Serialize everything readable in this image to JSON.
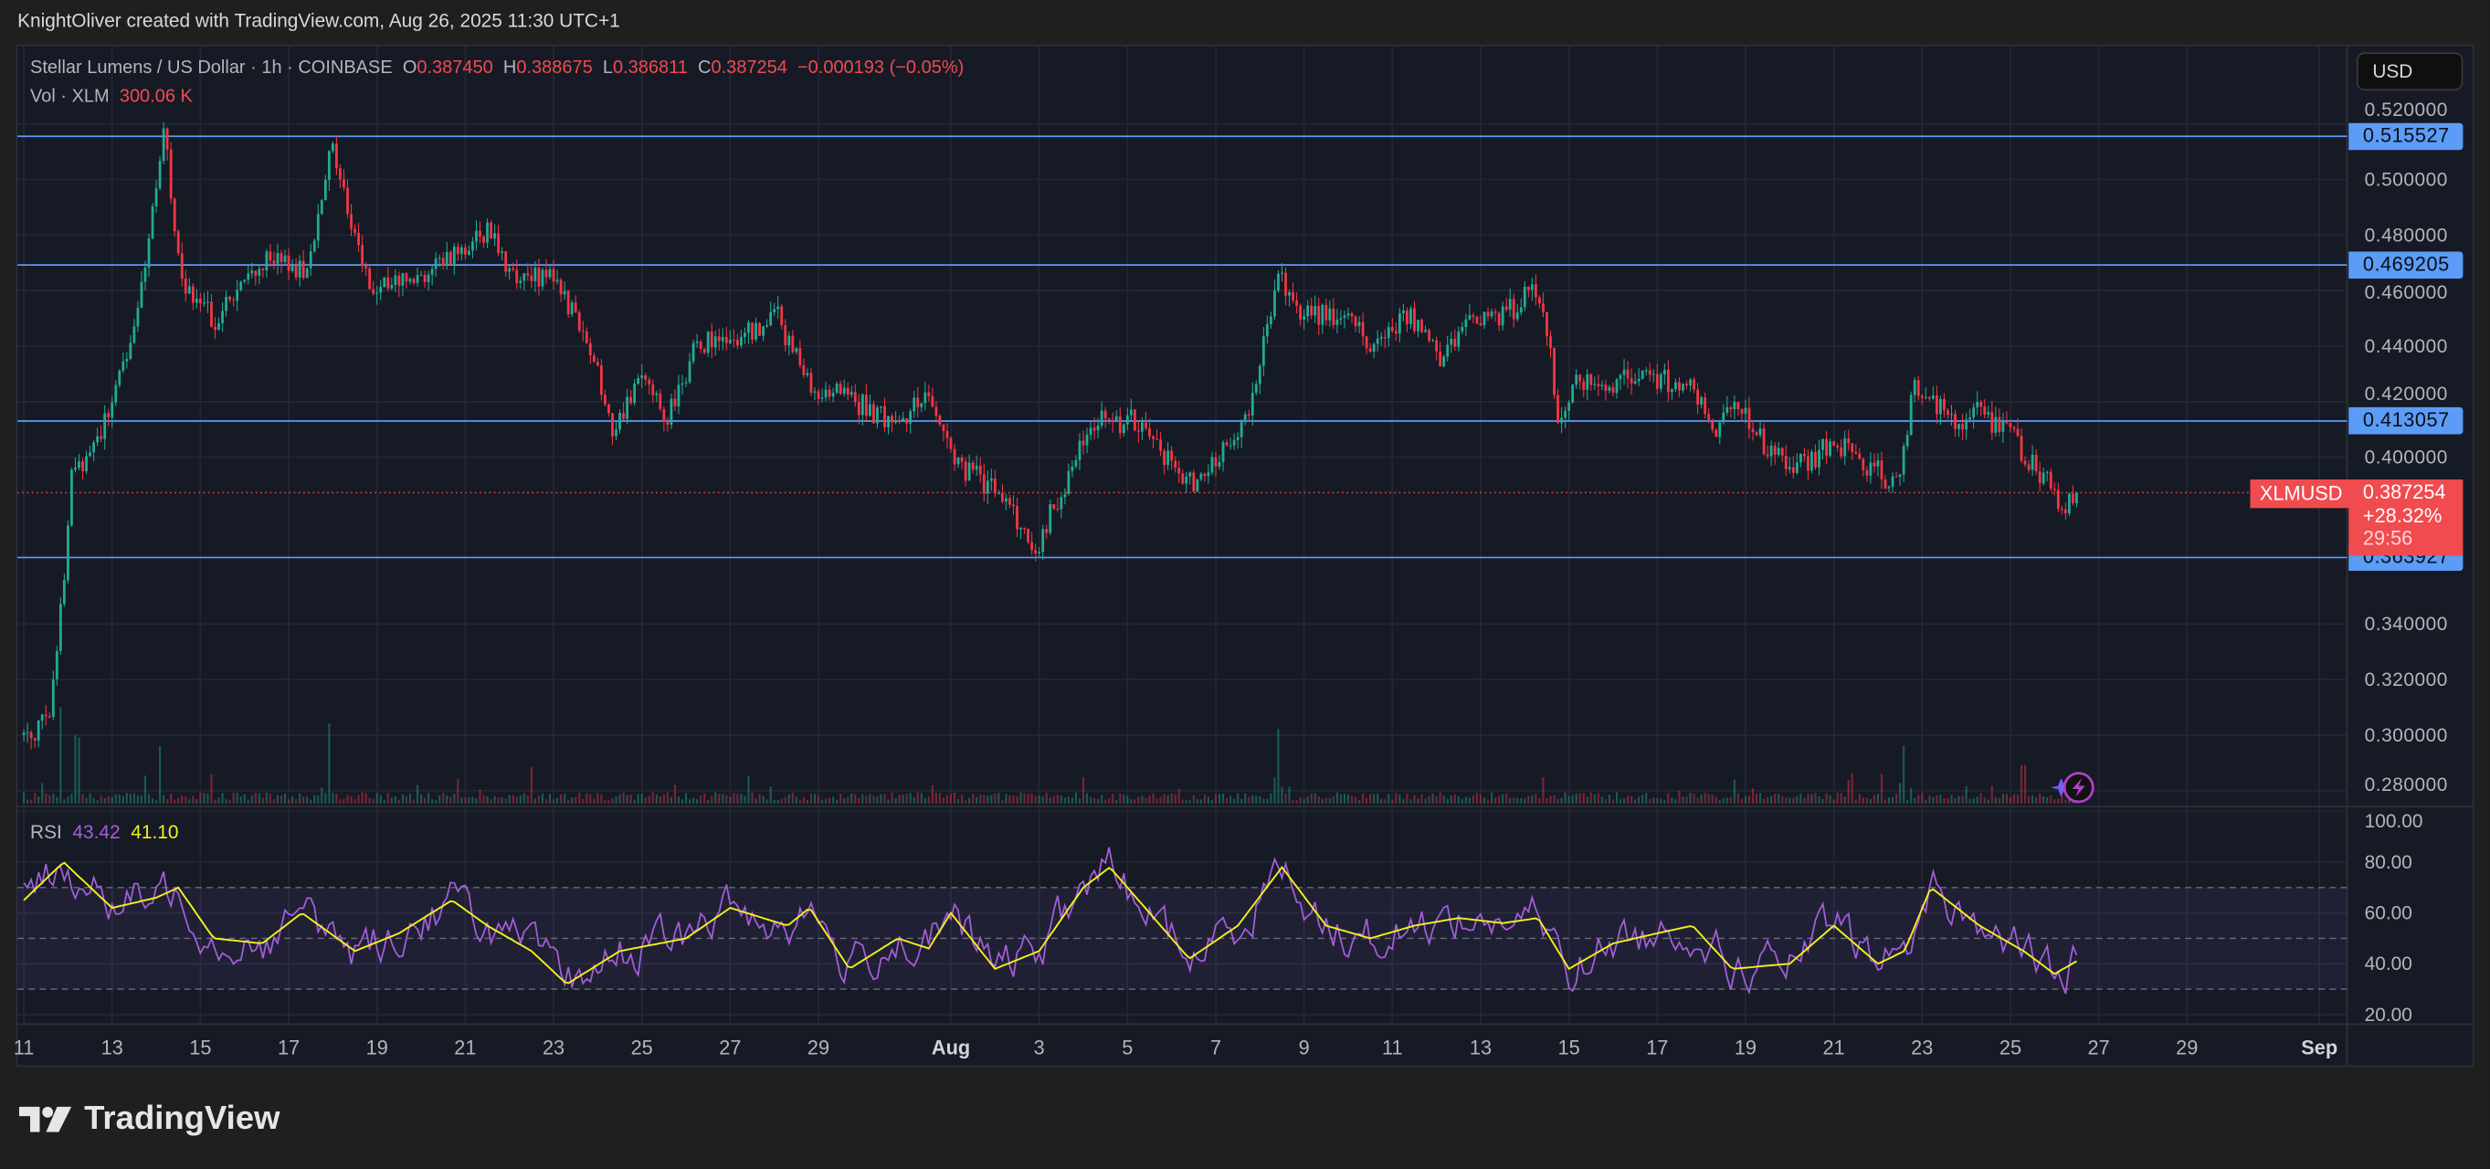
{
  "caption": "KnightOliver created with TradingView.com, Aug 26, 2025 11:30 UTC+1",
  "header": {
    "symbol_title": "Stellar Lumens / US Dollar · 1h · COINBASE",
    "o_label": "O",
    "o_value": "0.387450",
    "h_label": "H",
    "h_value": "0.388675",
    "l_label": "L",
    "l_value": "0.386811",
    "c_label": "C",
    "c_value": "0.387254",
    "change": "−0.000193 (−0.05%)",
    "vol_label": "Vol · XLM",
    "vol_value": "300.06 K"
  },
  "currency_button": "USD",
  "symbol_tag": "XLMUSD",
  "current_price": {
    "price": "0.387254",
    "change_pct": "+28.32%",
    "countdown": "29:56"
  },
  "logo_text": "TradingView",
  "colors": {
    "up": "#22ab94",
    "down": "#f23645",
    "hline": "#5b9cf6",
    "rsi": "#a45fd8",
    "rsi_ma": "#f2f21c"
  },
  "chart_data": [
    {
      "type": "candlestick",
      "title": "Stellar Lumens / US Dollar · 1h · COINBASE",
      "x_unit": "days since Jul 11 2025",
      "ylim": [
        0.27,
        0.525
      ],
      "y_ticks": [
        "0.520000",
        "0.500000",
        "0.480000",
        "0.460000",
        "0.440000",
        "0.420000",
        "0.400000",
        "0.340000",
        "0.320000",
        "0.300000",
        "0.280000"
      ],
      "y_tick_values": [
        0.52,
        0.5,
        0.48,
        0.46,
        0.44,
        0.42,
        0.4,
        0.34,
        0.32,
        0.3,
        0.28
      ],
      "horizontal_lines": [
        {
          "value": 0.515527,
          "label": "0.515527"
        },
        {
          "value": 0.469205,
          "label": "0.469205"
        },
        {
          "value": 0.413057,
          "label": "0.413057"
        },
        {
          "value": 0.363927,
          "label": "0.363927"
        }
      ],
      "last_price": 0.387254,
      "price_path": [
        [
          0,
          0.3
        ],
        [
          0.54,
          0.305
        ],
        [
          0.9,
          0.353
        ],
        [
          1.08,
          0.393
        ],
        [
          1.98,
          0.416
        ],
        [
          2.52,
          0.45
        ],
        [
          3.06,
          0.5
        ],
        [
          3.17,
          0.518
        ],
        [
          3.6,
          0.462
        ],
        [
          4.32,
          0.45
        ],
        [
          5.4,
          0.47
        ],
        [
          6.47,
          0.467
        ],
        [
          6.94,
          0.514
        ],
        [
          7.45,
          0.479
        ],
        [
          7.91,
          0.462
        ],
        [
          8.99,
          0.465
        ],
        [
          9.89,
          0.476
        ],
        [
          10.61,
          0.483
        ],
        [
          11.15,
          0.462
        ],
        [
          12.05,
          0.467
        ],
        [
          12.59,
          0.445
        ],
        [
          13.06,
          0.427
        ],
        [
          13.31,
          0.41
        ],
        [
          14.03,
          0.43
        ],
        [
          14.57,
          0.413
        ],
        [
          15.29,
          0.442
        ],
        [
          16.19,
          0.442
        ],
        [
          17.09,
          0.45
        ],
        [
          17.81,
          0.425
        ],
        [
          18.71,
          0.422
        ],
        [
          19.78,
          0.41
        ],
        [
          20.5,
          0.425
        ],
        [
          21.04,
          0.399
        ],
        [
          22.12,
          0.387
        ],
        [
          22.91,
          0.367
        ],
        [
          23.74,
          0.396
        ],
        [
          24.28,
          0.413
        ],
        [
          25.18,
          0.413
        ],
        [
          25.9,
          0.399
        ],
        [
          26.44,
          0.39
        ],
        [
          27.16,
          0.402
        ],
        [
          27.7,
          0.413
        ],
        [
          28.06,
          0.439
        ],
        [
          28.42,
          0.465
        ],
        [
          28.96,
          0.453
        ],
        [
          30.04,
          0.45
        ],
        [
          30.58,
          0.439
        ],
        [
          31.29,
          0.453
        ],
        [
          32.01,
          0.436
        ],
        [
          32.91,
          0.45
        ],
        [
          33.81,
          0.453
        ],
        [
          34.17,
          0.465
        ],
        [
          34.53,
          0.445
        ],
        [
          34.71,
          0.416
        ],
        [
          35.25,
          0.427
        ],
        [
          36.15,
          0.427
        ],
        [
          37.23,
          0.428
        ],
        [
          37.77,
          0.424
        ],
        [
          38.31,
          0.41
        ],
        [
          38.85,
          0.417
        ],
        [
          39.39,
          0.405
        ],
        [
          40.11,
          0.396
        ],
        [
          41.01,
          0.405
        ],
        [
          41.55,
          0.399
        ],
        [
          42.45,
          0.39
        ],
        [
          42.81,
          0.425
        ],
        [
          43.17,
          0.422
        ],
        [
          43.71,
          0.413
        ],
        [
          44.24,
          0.416
        ],
        [
          44.86,
          0.41
        ],
        [
          45.32,
          0.402
        ],
        [
          45.86,
          0.39
        ],
        [
          46.22,
          0.382
        ],
        [
          46.51,
          0.387
        ]
      ],
      "volume_spikes": [
        [
          0.8,
          1.0
        ],
        [
          1.2,
          0.7
        ],
        [
          3.1,
          0.6
        ],
        [
          6.9,
          0.7
        ],
        [
          11.5,
          0.3
        ],
        [
          28.4,
          0.75
        ],
        [
          42.6,
          0.6
        ],
        [
          45.3,
          0.35
        ]
      ]
    },
    {
      "type": "line",
      "title": "RSI",
      "rsi_label": "RSI",
      "rsi_value": "43.42",
      "ma_value": "41.10",
      "ylim": [
        15,
        100
      ],
      "y_ticks": [
        "100.00",
        "80.00",
        "60.00",
        "40.00",
        "20.00"
      ],
      "y_tick_values": [
        100,
        80,
        60,
        40,
        20
      ],
      "bands": {
        "upper": 70,
        "middle": 50,
        "lower": 30
      },
      "rsi_ma": [
        [
          0,
          65
        ],
        [
          0.9,
          80
        ],
        [
          2,
          62
        ],
        [
          3,
          66
        ],
        [
          3.5,
          70
        ],
        [
          4.3,
          50
        ],
        [
          5.4,
          48
        ],
        [
          6.3,
          60
        ],
        [
          7.5,
          45
        ],
        [
          8.5,
          52
        ],
        [
          9.7,
          65
        ],
        [
          10.5,
          55
        ],
        [
          11.5,
          45
        ],
        [
          12.3,
          32
        ],
        [
          13.5,
          45
        ],
        [
          15,
          50
        ],
        [
          16,
          62
        ],
        [
          17.3,
          55
        ],
        [
          17.8,
          62
        ],
        [
          18.7,
          38
        ],
        [
          19.8,
          50
        ],
        [
          20.5,
          46
        ],
        [
          21,
          60
        ],
        [
          22,
          38
        ],
        [
          23,
          45
        ],
        [
          24,
          70
        ],
        [
          24.6,
          78
        ],
        [
          25.5,
          60
        ],
        [
          26.4,
          42
        ],
        [
          27.5,
          55
        ],
        [
          28.5,
          78
        ],
        [
          29.5,
          55
        ],
        [
          30.5,
          50
        ],
        [
          31.5,
          55
        ],
        [
          32.5,
          58
        ],
        [
          33.5,
          56
        ],
        [
          34.3,
          58
        ],
        [
          35,
          38
        ],
        [
          36,
          48
        ],
        [
          37,
          52
        ],
        [
          37.8,
          55
        ],
        [
          38.7,
          38
        ],
        [
          40,
          40
        ],
        [
          41,
          55
        ],
        [
          42,
          40
        ],
        [
          42.6,
          45
        ],
        [
          43.2,
          70
        ],
        [
          44.3,
          55
        ],
        [
          45.3,
          45
        ],
        [
          46,
          36
        ],
        [
          46.51,
          41.1
        ]
      ],
      "rsi_last": 43.42
    }
  ],
  "x_axis": [
    {
      "label": "11",
      "day": 0
    },
    {
      "label": "13",
      "day": 2
    },
    {
      "label": "15",
      "day": 4
    },
    {
      "label": "17",
      "day": 6
    },
    {
      "label": "19",
      "day": 8
    },
    {
      "label": "21",
      "day": 10
    },
    {
      "label": "23",
      "day": 12
    },
    {
      "label": "25",
      "day": 14
    },
    {
      "label": "27",
      "day": 16
    },
    {
      "label": "29",
      "day": 18
    },
    {
      "label": "Aug",
      "day": 21,
      "bold": true
    },
    {
      "label": "3",
      "day": 23
    },
    {
      "label": "5",
      "day": 25
    },
    {
      "label": "7",
      "day": 27
    },
    {
      "label": "9",
      "day": 29
    },
    {
      "label": "11",
      "day": 31
    },
    {
      "label": "13",
      "day": 33
    },
    {
      "label": "15",
      "day": 35
    },
    {
      "label": "17",
      "day": 37
    },
    {
      "label": "19",
      "day": 39
    },
    {
      "label": "21",
      "day": 41
    },
    {
      "label": "23",
      "day": 43
    },
    {
      "label": "25",
      "day": 45
    },
    {
      "label": "27",
      "day": 47
    },
    {
      "label": "29",
      "day": 49
    },
    {
      "label": "Sep",
      "day": 52,
      "bold": true
    }
  ]
}
